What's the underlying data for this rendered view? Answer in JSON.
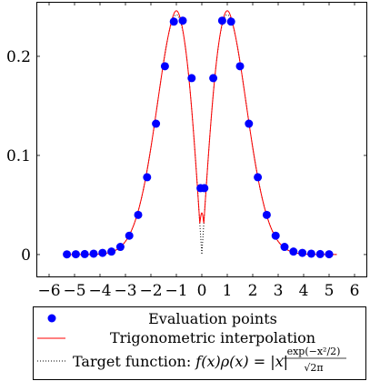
{
  "chart_data": {
    "type": "line",
    "xlim": [
      -6.5,
      6.5
    ],
    "ylim": [
      -0.023,
      0.255
    ],
    "x_ticks": [
      -6,
      -5,
      -4,
      -3,
      -2,
      -1,
      0,
      1,
      2,
      3,
      4,
      5,
      6
    ],
    "x_tick_labels": [
      "−6",
      "−5",
      "−4",
      "−3",
      "−2",
      "−1",
      "0",
      "1",
      "2",
      "3",
      "4",
      "5",
      "6"
    ],
    "y_ticks": [
      0,
      0.1,
      0.2
    ],
    "y_tick_labels": [
      "0",
      "0.1",
      "0.2"
    ],
    "grid": false,
    "legend_placement": "below",
    "series": [
      {
        "name": "Evaluation points",
        "kind": "scatter",
        "color": "#0000ff",
        "x": [
          -5.3,
          -4.95,
          -4.6,
          -4.25,
          -3.9,
          -3.55,
          -3.2,
          -2.85,
          -2.5,
          -2.15,
          -1.8,
          -1.45,
          -1.1,
          -0.75,
          -0.4,
          -0.05,
          0.1,
          0.45,
          0.8,
          1.15,
          1.5,
          1.85,
          2.2,
          2.55,
          2.9,
          3.25,
          3.6,
          3.95,
          4.3,
          4.65,
          5.0
        ],
        "y": [
          0.0002,
          0.0003,
          0.0005,
          0.0009,
          0.0017,
          0.003,
          0.0077,
          0.019,
          0.04,
          0.078,
          0.132,
          0.19,
          0.235,
          0.236,
          0.178,
          0.067,
          0.067,
          0.178,
          0.236,
          0.235,
          0.19,
          0.132,
          0.078,
          0.04,
          0.019,
          0.0077,
          0.003,
          0.0017,
          0.0009,
          0.0005,
          0.0003
        ]
      },
      {
        "name": "Trigonometric interpolation",
        "kind": "line",
        "color": "#ff0000",
        "dash": "solid"
      },
      {
        "name": "Target function: f(x)ρ(x) = |x| exp(−x²/2) / √(2π)",
        "kind": "line",
        "color": "#000000",
        "dash": "dotted"
      }
    ]
  },
  "legend": {
    "items": [
      {
        "label": "Evaluation points"
      },
      {
        "label": "Trigonometric interpolation"
      },
      {
        "label_prefix": "Target function: ",
        "formula_left": "f(x)ρ(x) = |x|",
        "formula_num": "exp(−x²/2)",
        "formula_den": "√2π"
      }
    ]
  }
}
